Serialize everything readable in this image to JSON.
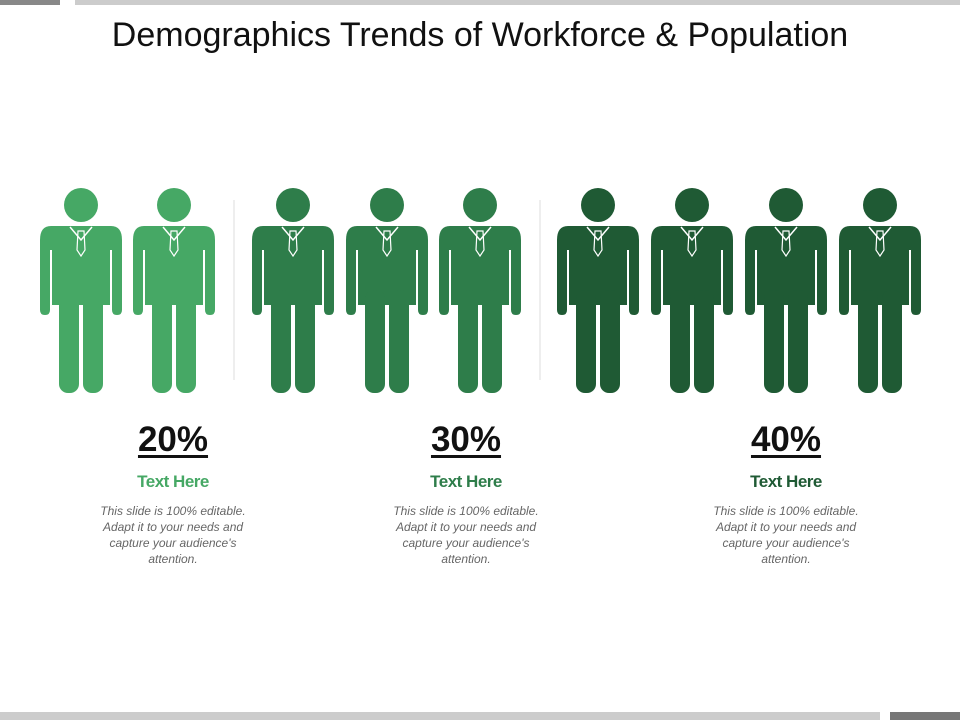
{
  "header": {
    "title": "Demographics Trends of Workforce & Population"
  },
  "groups": [
    {
      "percent": "20%",
      "heading": "Text Here",
      "body": "This slide is 100% editable. Adapt it to your needs and capture your audience's attention."
    },
    {
      "percent": "30%",
      "heading": "Text Here",
      "body": "This slide is 100% editable. Adapt it to your needs and capture your audience's attention."
    },
    {
      "percent": "40%",
      "heading": "Text Here",
      "body": "This slide is 100% editable. Adapt it to your needs and capture your audience's attention."
    }
  ]
}
